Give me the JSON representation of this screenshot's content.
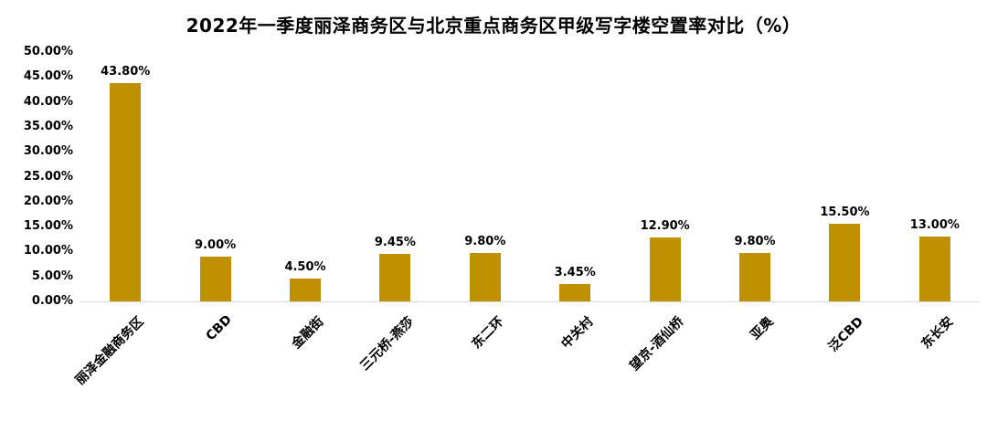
{
  "chart_data": {
    "type": "bar",
    "title": "2022年一季度丽泽商务区与北京重点商务区甲级写字楼空置率对比（%）",
    "categories": [
      "丽泽金融商务区",
      "CBD",
      "金融街",
      "三元桥-燕莎",
      "东二环",
      "中关村",
      "望京-酒仙桥",
      "亚奥",
      "泛CBD",
      "东长安"
    ],
    "values": [
      43.8,
      9.0,
      4.5,
      9.45,
      9.8,
      3.45,
      12.9,
      9.8,
      15.5,
      13.0
    ],
    "value_labels": [
      "43.80%",
      "9.00%",
      "4.50%",
      "9.45%",
      "9.80%",
      "3.45%",
      "12.90%",
      "9.80%",
      "15.50%",
      "13.00%"
    ],
    "xlabel": "",
    "ylabel": "",
    "ylim": [
      0,
      50
    ],
    "ytick_step": 5,
    "ytick_labels": [
      "0.00%",
      "5.00%",
      "10.00%",
      "15.00%",
      "20.00%",
      "25.00%",
      "30.00%",
      "35.00%",
      "40.00%",
      "45.00%",
      "50.00%"
    ],
    "grid": false,
    "legend": "none",
    "bar_color": "#BF9000",
    "axis_line_color": "#D9D9D9",
    "text_color": "#000000"
  }
}
